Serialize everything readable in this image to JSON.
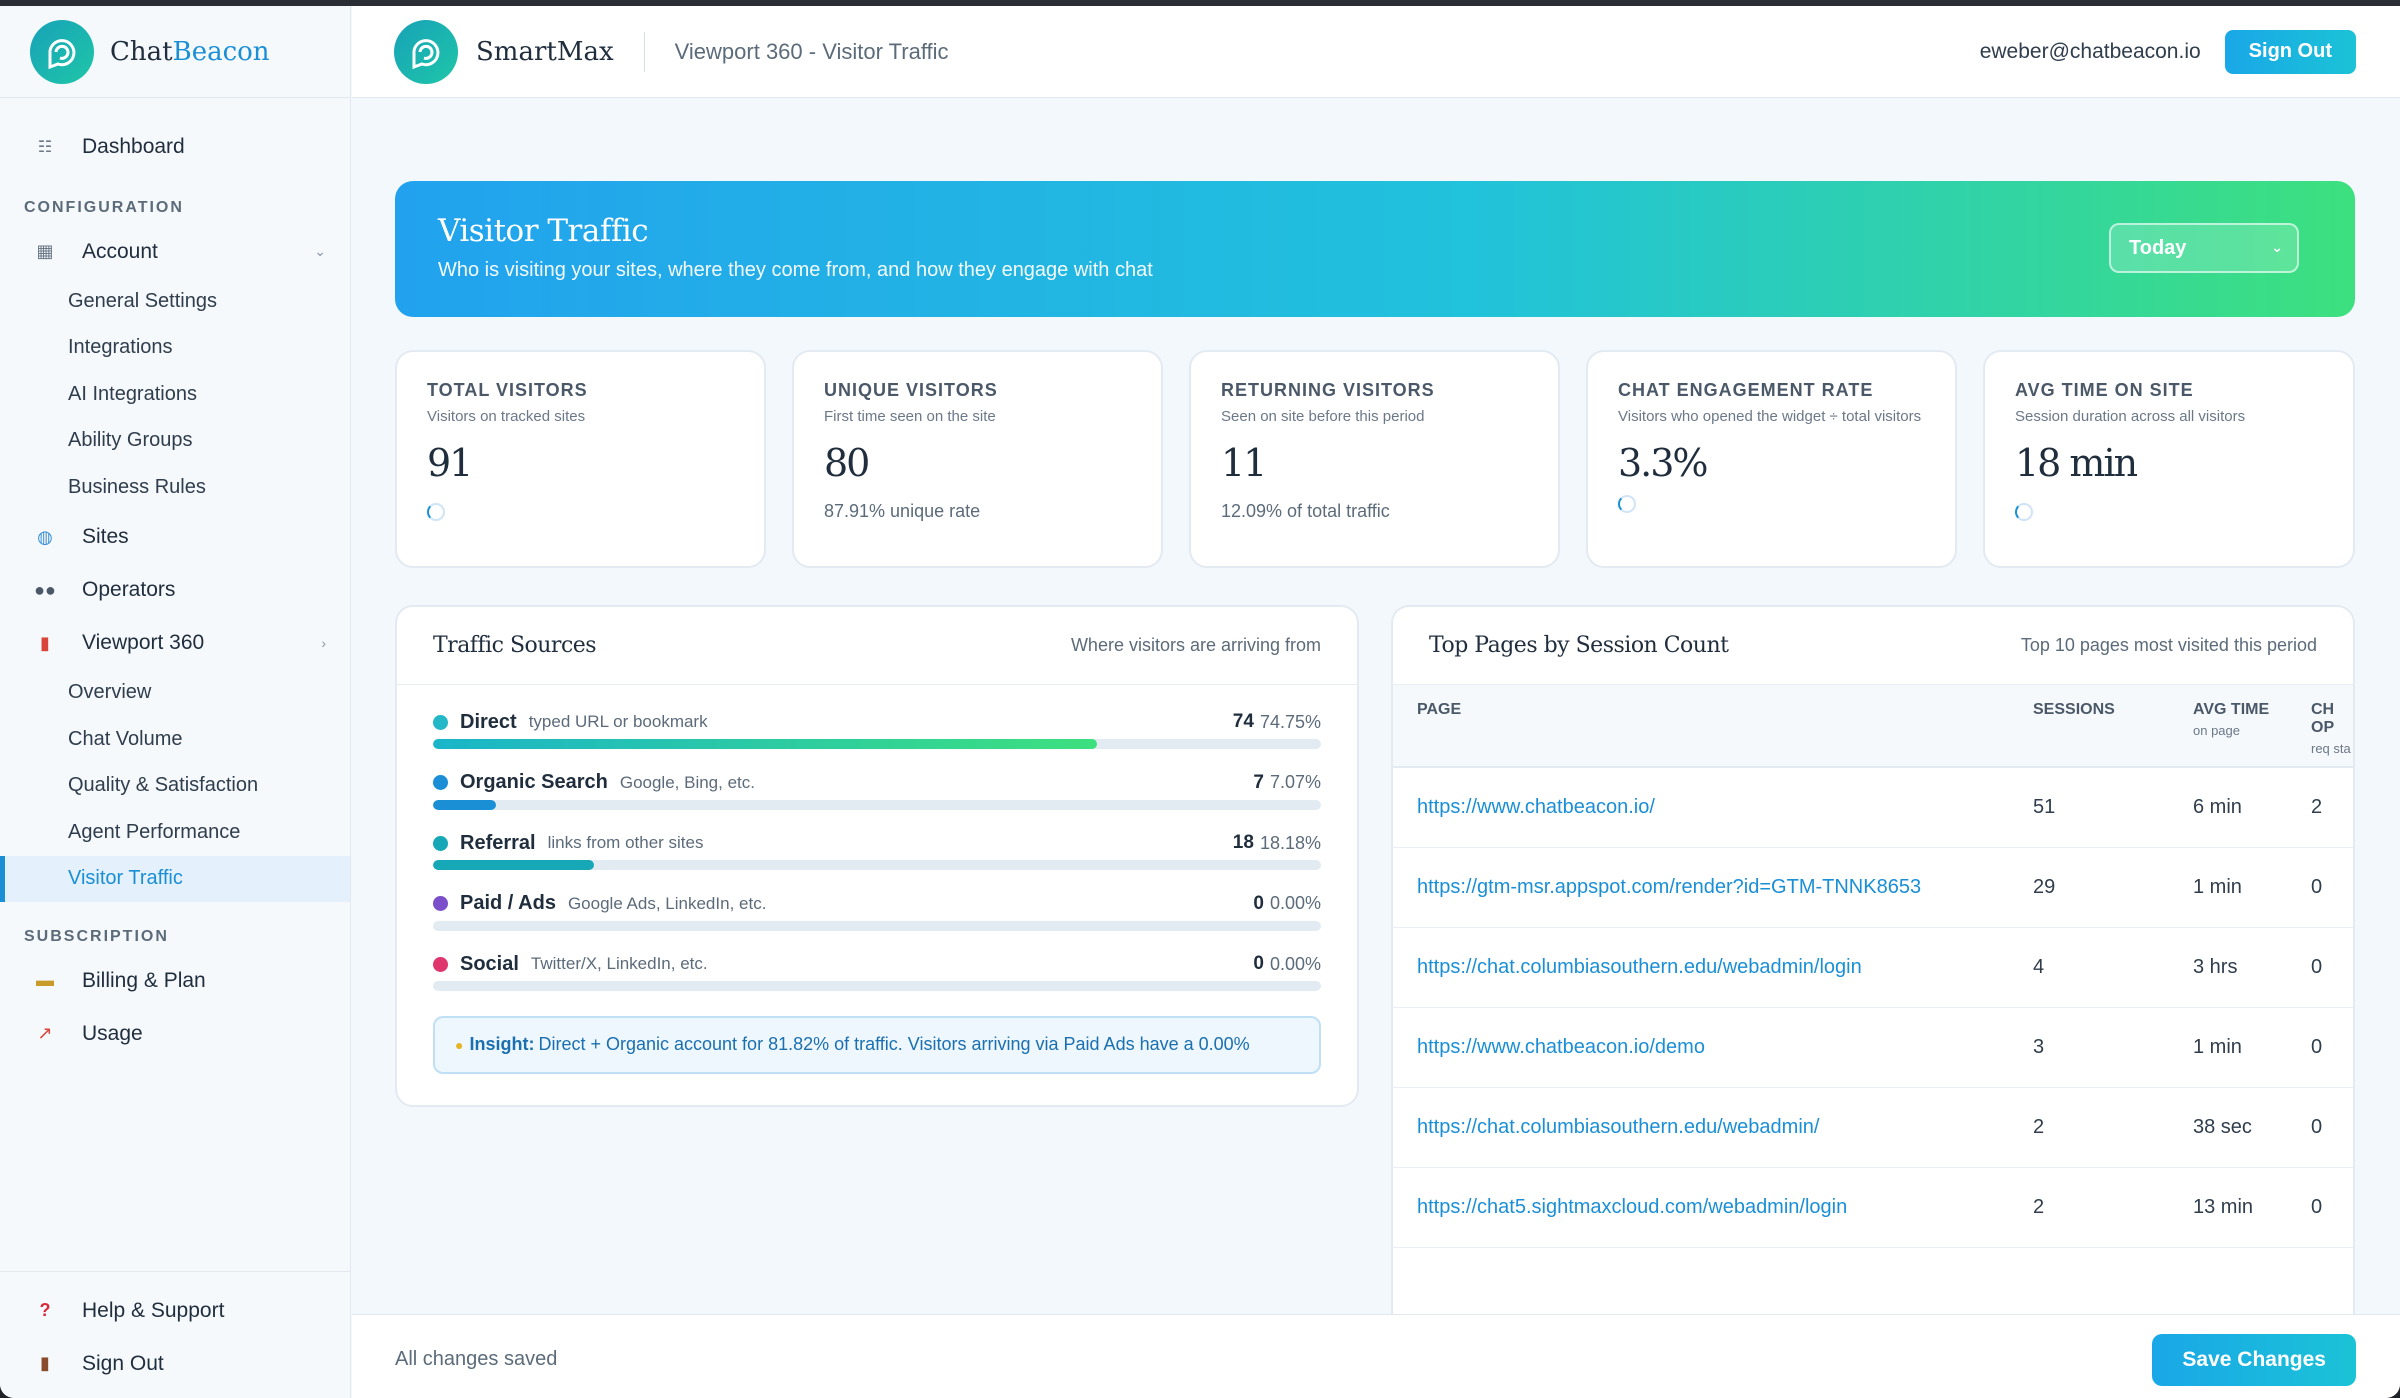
{
  "sidebar": {
    "brand": {
      "part1": "Chat",
      "part2": "Beacon"
    },
    "dashboard": "Dashboard",
    "sections": {
      "configuration": "CONFIGURATION",
      "subscription": "SUBSCRIPTION"
    },
    "account": {
      "label": "Account",
      "children": [
        "General Settings",
        "Integrations",
        "AI Integrations",
        "Ability Groups",
        "Business Rules"
      ]
    },
    "sites": "Sites",
    "operators": "Operators",
    "viewport": {
      "label": "Viewport 360",
      "children": [
        "Overview",
        "Chat Volume",
        "Quality & Satisfaction",
        "Agent Performance",
        "Visitor Traffic"
      ]
    },
    "billing": "Billing & Plan",
    "usage": "Usage",
    "help": "Help & Support",
    "signout": "Sign Out"
  },
  "header": {
    "brand": "SmartMax",
    "title": "Viewport 360 - Visitor Traffic",
    "email": "eweber@chatbeacon.io",
    "signout": "Sign Out"
  },
  "hero": {
    "title": "Visitor Traffic",
    "subtitle": "Who is visiting your sites, where they come from, and how they engage with chat",
    "period": "Today"
  },
  "stats": [
    {
      "label": "TOTAL VISITORS",
      "desc": "Visitors on tracked sites",
      "value": "91",
      "foot": ""
    },
    {
      "label": "UNIQUE VISITORS",
      "desc": "First time seen on the site",
      "value": "80",
      "foot": "87.91% unique rate"
    },
    {
      "label": "RETURNING VISITORS",
      "desc": "Seen on site before this period",
      "value": "11",
      "foot": "12.09% of total traffic"
    },
    {
      "label": "CHAT ENGAGEMENT RATE",
      "desc": "Visitors who opened the widget ÷ total visitors",
      "value": "3.3%",
      "foot": ""
    },
    {
      "label": "AVG TIME ON SITE",
      "desc": "Session duration across all visitors",
      "value": "18 min",
      "foot": ""
    }
  ],
  "traffic": {
    "title": "Traffic Sources",
    "hint": "Where visitors are arriving from",
    "sources": [
      {
        "name": "Direct",
        "desc": "typed URL or bookmark",
        "count": "74",
        "pct": "74.75%",
        "share": 74.75,
        "color": "#22b8c8"
      },
      {
        "name": "Organic Search",
        "desc": "Google, Bing, etc.",
        "count": "7",
        "pct": "7.07%",
        "share": 7.07,
        "color": "#1a8fd6"
      },
      {
        "name": "Referral",
        "desc": "links from other sites",
        "count": "18",
        "pct": "18.18%",
        "share": 18.18,
        "color": "#17a8b8"
      },
      {
        "name": "Paid / Ads",
        "desc": "Google Ads, LinkedIn, etc.",
        "count": "0",
        "pct": "0.00%",
        "share": 0,
        "color": "#7b4fc9"
      },
      {
        "name": "Social",
        "desc": "Twitter/X, LinkedIn, etc.",
        "count": "0",
        "pct": "0.00%",
        "share": 0,
        "color": "#e0366e"
      }
    ],
    "insight_label": "Insight:",
    "insight_text": "Direct + Organic account for 81.82% of traffic. Visitors arriving via Paid Ads have a 0.00%"
  },
  "pages": {
    "title": "Top Pages by Session Count",
    "hint": "Top 10 pages most visited this period",
    "columns": {
      "page": "PAGE",
      "sessions": "SESSIONS",
      "avg_time": "AVG TIME",
      "avg_time_sub": "on page",
      "chat": "CH OP",
      "chat_sub": "req sta"
    },
    "rows": [
      {
        "url": "https://www.chatbeacon.io/",
        "sessions": "51",
        "time": "6 min",
        "chats": "2"
      },
      {
        "url": "https://gtm-msr.appspot.com/render?id=GTM-TNNK8653",
        "sessions": "29",
        "time": "1 min",
        "chats": "0"
      },
      {
        "url": "https://chat.columbiasouthern.edu/webadmin/login",
        "sessions": "4",
        "time": "3 hrs",
        "chats": "0"
      },
      {
        "url": "https://www.chatbeacon.io/demo",
        "sessions": "3",
        "time": "1 min",
        "chats": "0"
      },
      {
        "url": "https://chat.columbiasouthern.edu/webadmin/",
        "sessions": "2",
        "time": "38 sec",
        "chats": "0"
      },
      {
        "url": "https://chat5.sightmaxcloud.com/webadmin/login",
        "sessions": "2",
        "time": "13 min",
        "chats": "0"
      }
    ]
  },
  "footer": {
    "status": "All changes saved",
    "save": "Save Changes"
  }
}
